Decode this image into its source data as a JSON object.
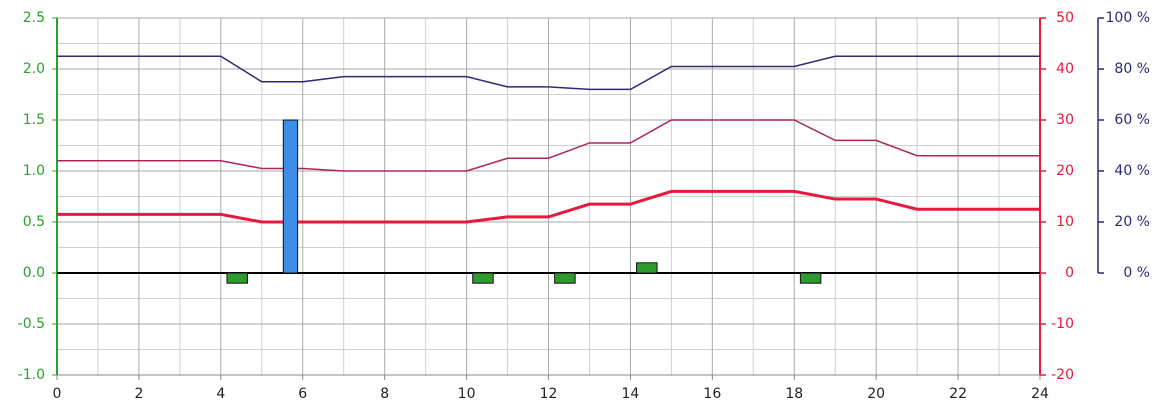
{
  "chart_data": {
    "type": "line",
    "x": [
      0,
      1,
      2,
      3,
      4,
      5,
      6,
      7,
      8,
      9,
      10,
      11,
      12,
      13,
      14,
      15,
      16,
      17,
      18,
      19,
      20,
      21,
      22,
      23,
      24
    ],
    "xlim": [
      0,
      24
    ],
    "xticks": [
      0,
      2,
      4,
      6,
      8,
      10,
      12,
      14,
      16,
      18,
      20,
      22,
      24
    ],
    "ylim": [
      -1.0,
      2.5
    ],
    "yticks": [
      {
        "value": -1.0,
        "label": "-1.0"
      },
      -0.5,
      {
        "value": 0.0,
        "label": "0.0"
      },
      0.5,
      {
        "value": 1.0,
        "label": "1.0"
      },
      1.5,
      {
        "value": 2.0,
        "label": "2.0"
      },
      2.5
    ],
    "y2lim": [
      -20,
      50
    ],
    "y2ticks": [
      -20,
      -10,
      0,
      10,
      20,
      30,
      40,
      50
    ],
    "y3lim": [
      0,
      100
    ],
    "y3ticks": [
      {
        "value": 0,
        "label": "0 %"
      },
      {
        "value": 20,
        "label": "20 %"
      },
      {
        "value": 40,
        "label": "40 %"
      },
      {
        "value": 60,
        "label": "60 %"
      },
      {
        "value": 80,
        "label": "80 %"
      },
      {
        "value": 100,
        "label": "100 %"
      }
    ],
    "grid": true,
    "axis_colors": {
      "y": "#2ca02c",
      "y2": "#e8193c",
      "y3": "#2e2a78"
    },
    "series": [
      {
        "type": "line",
        "axis": "y3",
        "color": "#2e2a78",
        "width": 1.5,
        "values": [
          85,
          85,
          85,
          85,
          85,
          75,
          75,
          77,
          77,
          77,
          77,
          73,
          73,
          72,
          72,
          81,
          81,
          81,
          81,
          85,
          85,
          85,
          85,
          85,
          85
        ]
      },
      {
        "type": "line",
        "axis": "y2",
        "color": "#b0245e",
        "width": 1.5,
        "values": [
          22,
          22,
          22,
          22,
          22,
          20.5,
          20.5,
          20,
          20,
          20,
          20,
          22.5,
          22.5,
          25.5,
          25.5,
          30,
          30,
          30,
          30,
          26,
          26,
          23,
          23,
          23,
          23
        ]
      },
      {
        "type": "line",
        "axis": "y2",
        "color": "#e8193c",
        "width": 3,
        "values": [
          11.5,
          11.5,
          11.5,
          11.5,
          11.5,
          10,
          10,
          10,
          10,
          10,
          10,
          11,
          11,
          13.5,
          13.5,
          16,
          16,
          16,
          16,
          14.5,
          14.5,
          12.5,
          12.5,
          12.5,
          12.5
        ]
      },
      {
        "type": "bar",
        "axis": "y",
        "color": "#3d8ee8",
        "x": [
          5.7
        ],
        "values": [
          1.5
        ]
      },
      {
        "type": "bar",
        "axis": "y",
        "color": "#2e9a2e",
        "x": [
          4.4,
          10.4,
          12.4,
          14.4,
          18.4
        ],
        "values": [
          -0.1,
          -0.1,
          -0.1,
          0.1,
          -0.1
        ]
      }
    ]
  }
}
